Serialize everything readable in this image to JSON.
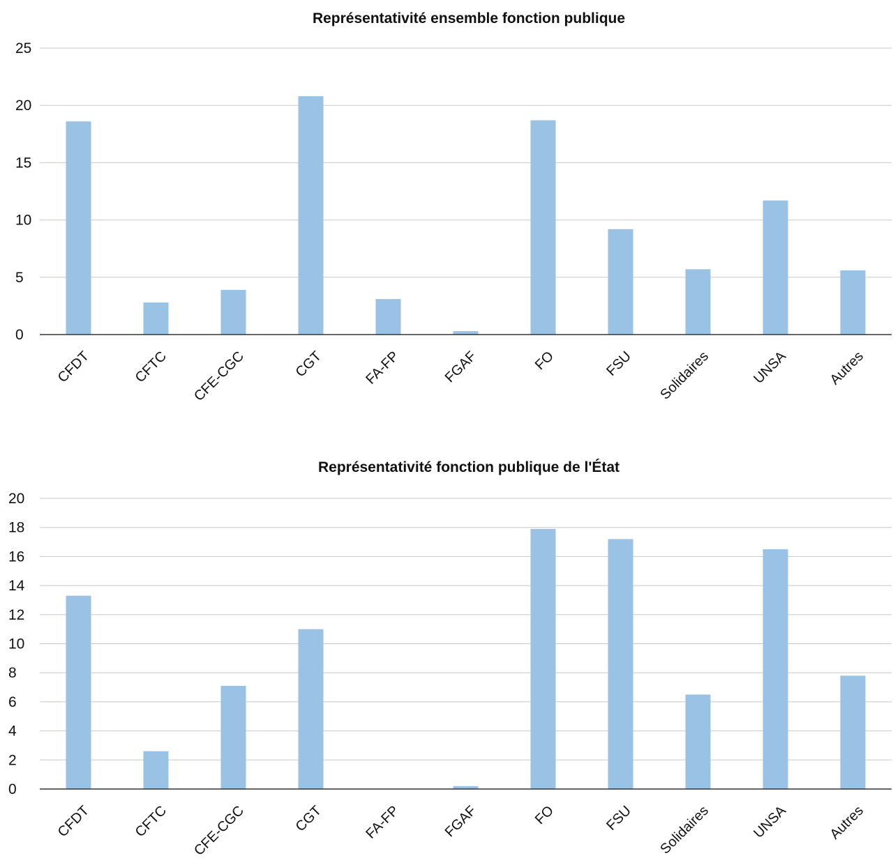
{
  "colors": {
    "bar": "#99C2E5",
    "grid": "#C8C8C8",
    "axis": "#333333",
    "text": "#111111"
  },
  "chart_data": [
    {
      "type": "bar",
      "title": "Représentativité ensemble fonction publique",
      "xlabel": "",
      "ylabel": "",
      "categories": [
        "CFDT",
        "CFTC",
        "CFE-CGC",
        "CGT",
        "FA-FP",
        "FGAF",
        "FO",
        "FSU",
        "Solidaires",
        "UNSA",
        "Autres"
      ],
      "values": [
        18.6,
        2.8,
        3.9,
        20.8,
        3.1,
        0.3,
        18.7,
        9.2,
        5.7,
        11.7,
        5.6
      ],
      "ylim": [
        0,
        25
      ],
      "yticks": [
        0,
        5,
        10,
        15,
        20,
        25
      ],
      "grid": true,
      "legend": "none"
    },
    {
      "type": "bar",
      "title": "Représentativité fonction publique de l'État",
      "xlabel": "",
      "ylabel": "",
      "categories": [
        "CFDT",
        "CFTC",
        "CFE-CGC",
        "CGT",
        "FA-FP",
        "FGAF",
        "FO",
        "FSU",
        "Solidaires",
        "UNSA",
        "Autres"
      ],
      "values": [
        13.3,
        2.6,
        7.1,
        11.0,
        0.0,
        0.2,
        17.9,
        17.2,
        6.5,
        16.5,
        7.8
      ],
      "ylim": [
        0,
        20
      ],
      "yticks": [
        0,
        2,
        4,
        6,
        8,
        10,
        12,
        14,
        16,
        18,
        20
      ],
      "grid": true,
      "legend": "none"
    }
  ]
}
